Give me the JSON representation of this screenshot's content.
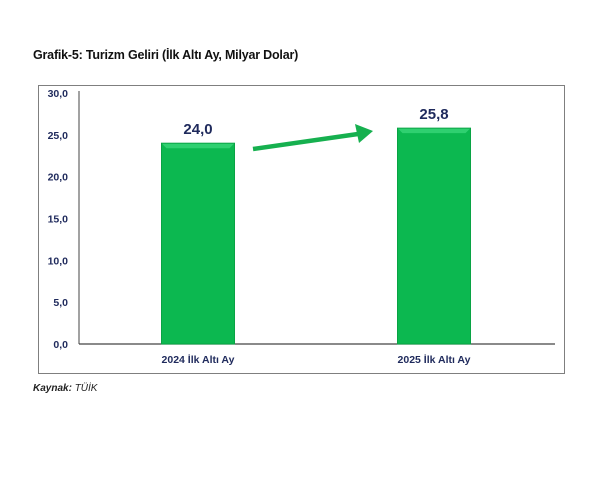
{
  "title": "Grafik-5: Turizm Geliri (İlk Altı Ay, Milyar Dolar)",
  "source_label": "Kaynak:",
  "source_value": "TÜİK",
  "chart_data": {
    "type": "bar",
    "title": "Grafik-5: Turizm Geliri (İlk Altı Ay, Milyar Dolar)",
    "categories": [
      "2024 İlk Altı Ay",
      "2025 İlk Altı Ay"
    ],
    "values": [
      24.0,
      25.8
    ],
    "data_labels": [
      "24,0",
      "25,8"
    ],
    "ylim": [
      0,
      30
    ],
    "yticks": [
      "0,0",
      "5,0",
      "10,0",
      "15,0",
      "20,0",
      "25,0",
      "30,0"
    ],
    "grid": false,
    "annotation": "green arrow pointing up from first bar to second bar",
    "colors": {
      "bar": "#0cb850",
      "bar_edge": "#2fd070",
      "arrow": "#16b04f",
      "axis_text": "#1f2a5c"
    }
  }
}
